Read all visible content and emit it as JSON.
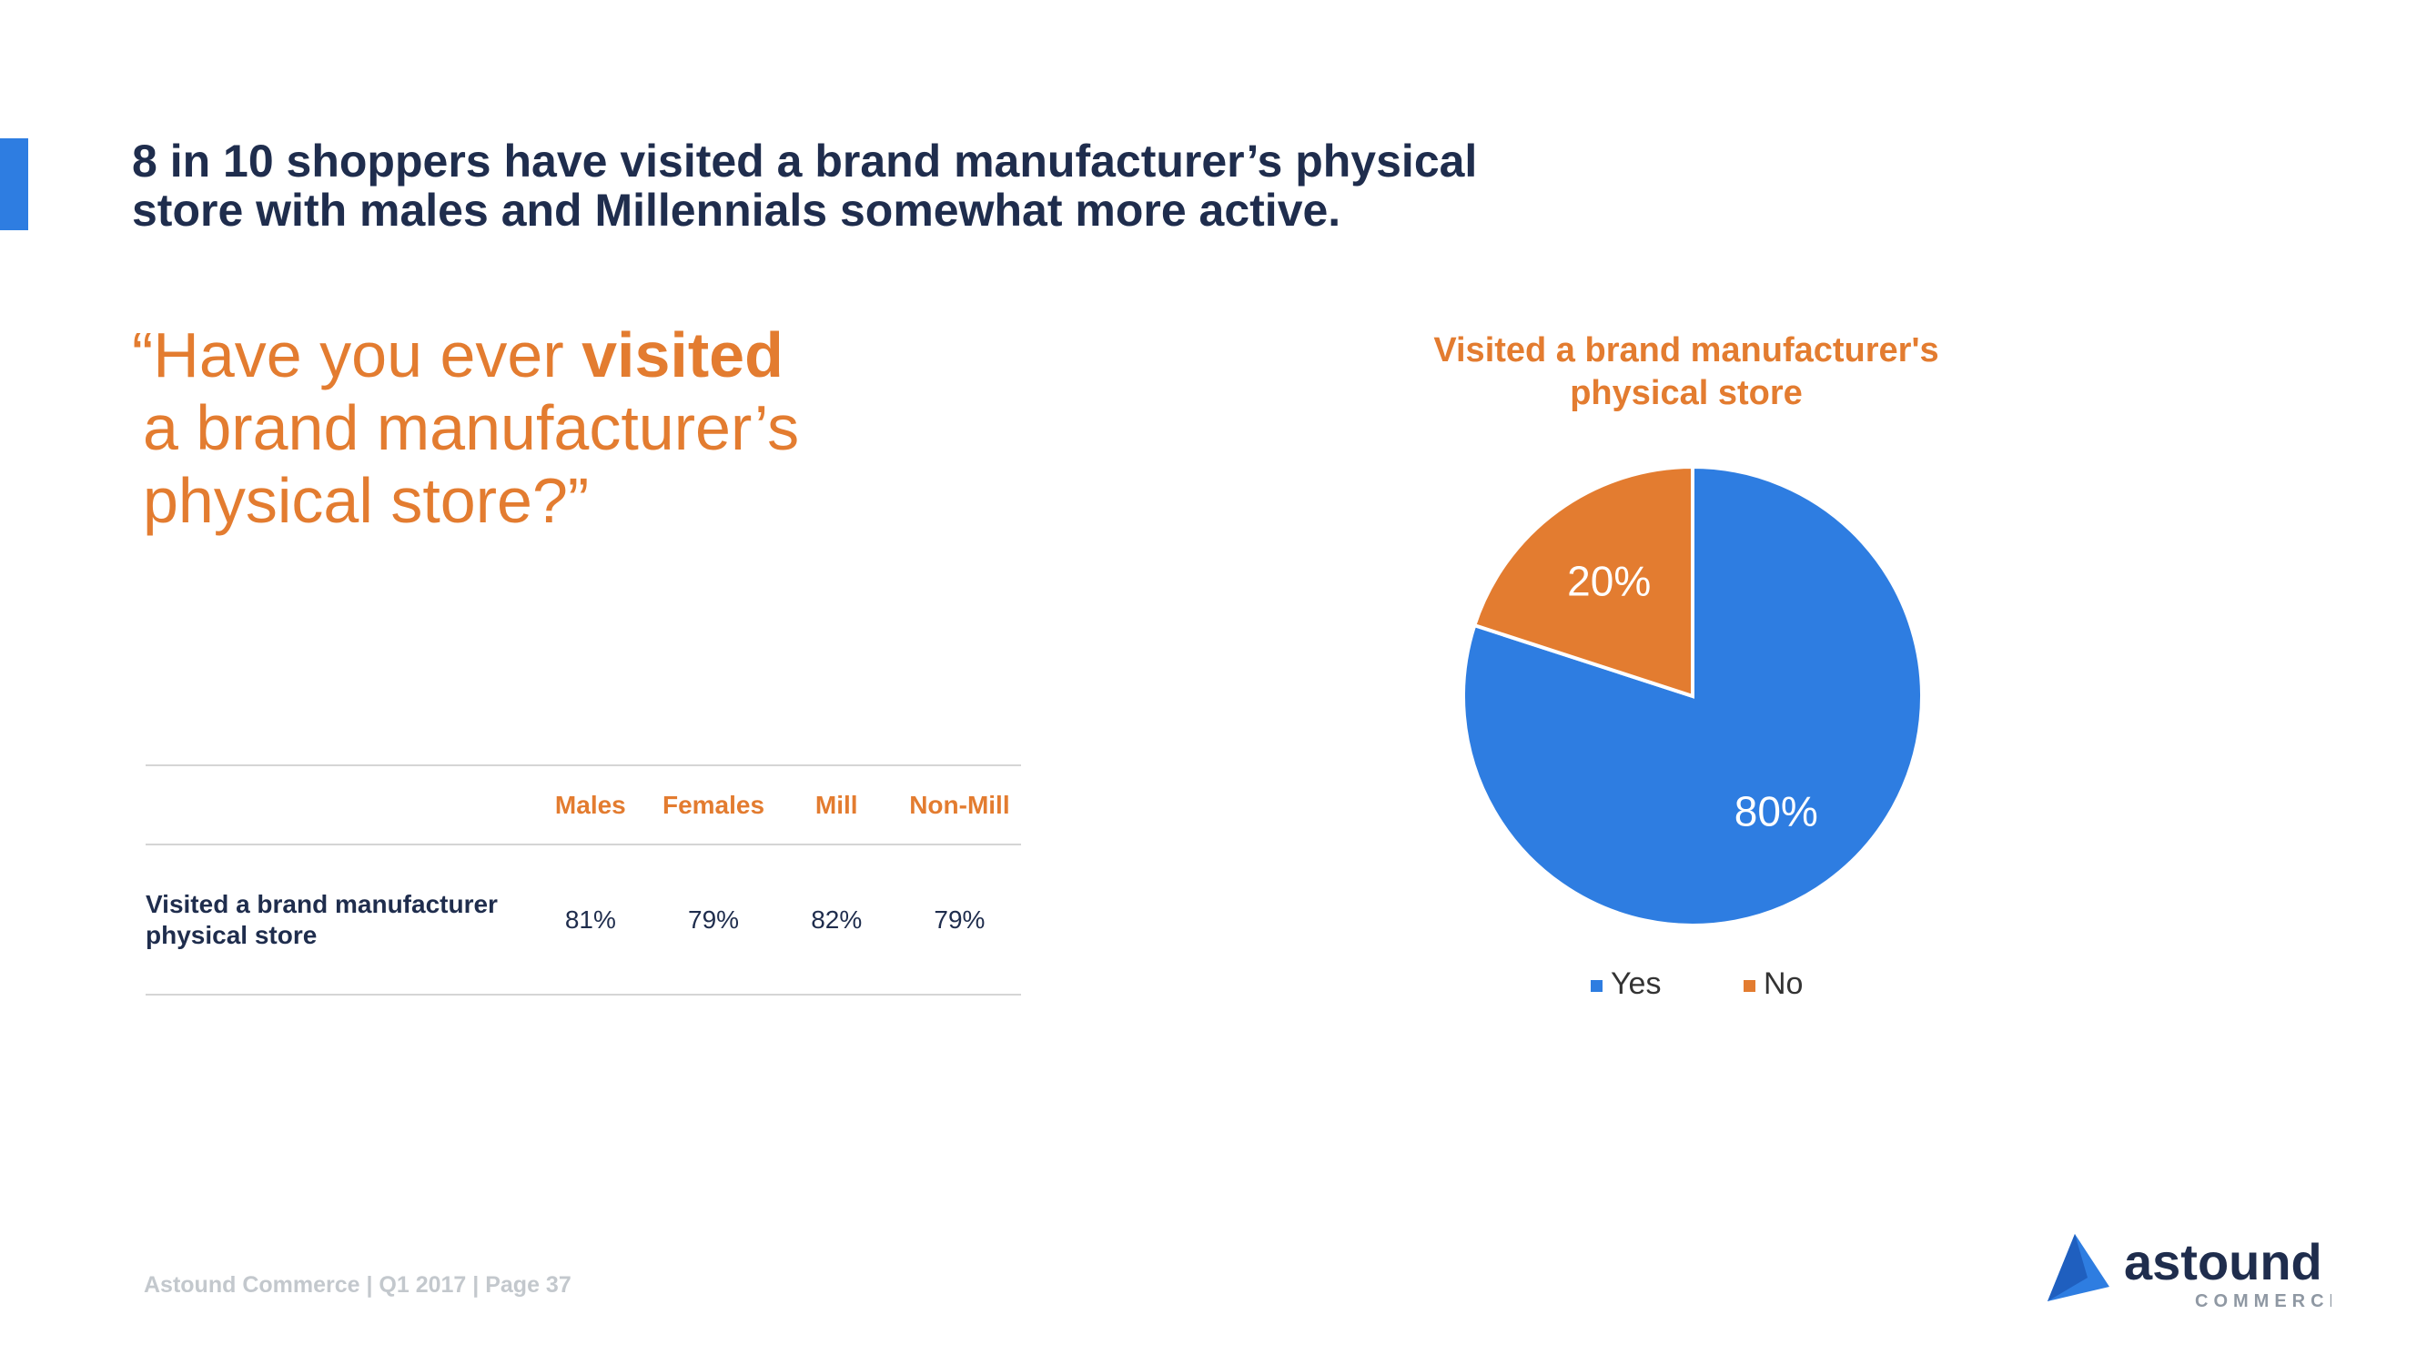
{
  "slide": {
    "headline_line1": "8 in 10 shoppers have visited a brand manufacturer’s physical",
    "headline_line2": "store with males and Millennials somewhat more active.",
    "question": {
      "line1_prefix": "“Have you ever ",
      "line1_highlight": "visited",
      "line2": "a brand manufacturer’s",
      "line3": "physical store?”"
    },
    "footer": "Astound Commerce | Q1 2017 | Page 37"
  },
  "breakdown_table": {
    "columns": [
      "Males",
      "Females",
      "Mill",
      "Non-Mill"
    ],
    "rows": [
      {
        "label_line1": "Visited a brand manufacturer",
        "label_line2": "physical store",
        "values": [
          "81%",
          "79%",
          "82%",
          "79%"
        ]
      }
    ]
  },
  "logo": {
    "wordmark": "astound",
    "subtext": "COMMERCE",
    "colors": {
      "mark": "#2e7de1",
      "text": "#1f2d4d",
      "subtext": "#8f98a3"
    }
  },
  "colors": {
    "accent_blue": "#2e7de1",
    "accent_orange": "#e37c30",
    "navy": "#1f2d4d",
    "rule_gray": "#d5d5d5",
    "footer_gray": "#c3c8cd"
  },
  "chart_data": {
    "type": "pie",
    "title_line1": "Visited a brand manufacturer's",
    "title_line2": "physical store",
    "start_angle_deg": 0,
    "direction": "clockwise",
    "legend_placement": "bottom",
    "slices": [
      {
        "name": "Yes",
        "value": 80,
        "label": "80%",
        "color": "#2e7de1"
      },
      {
        "name": "No",
        "value": 20,
        "label": "20%",
        "color": "#e37c30"
      }
    ]
  }
}
